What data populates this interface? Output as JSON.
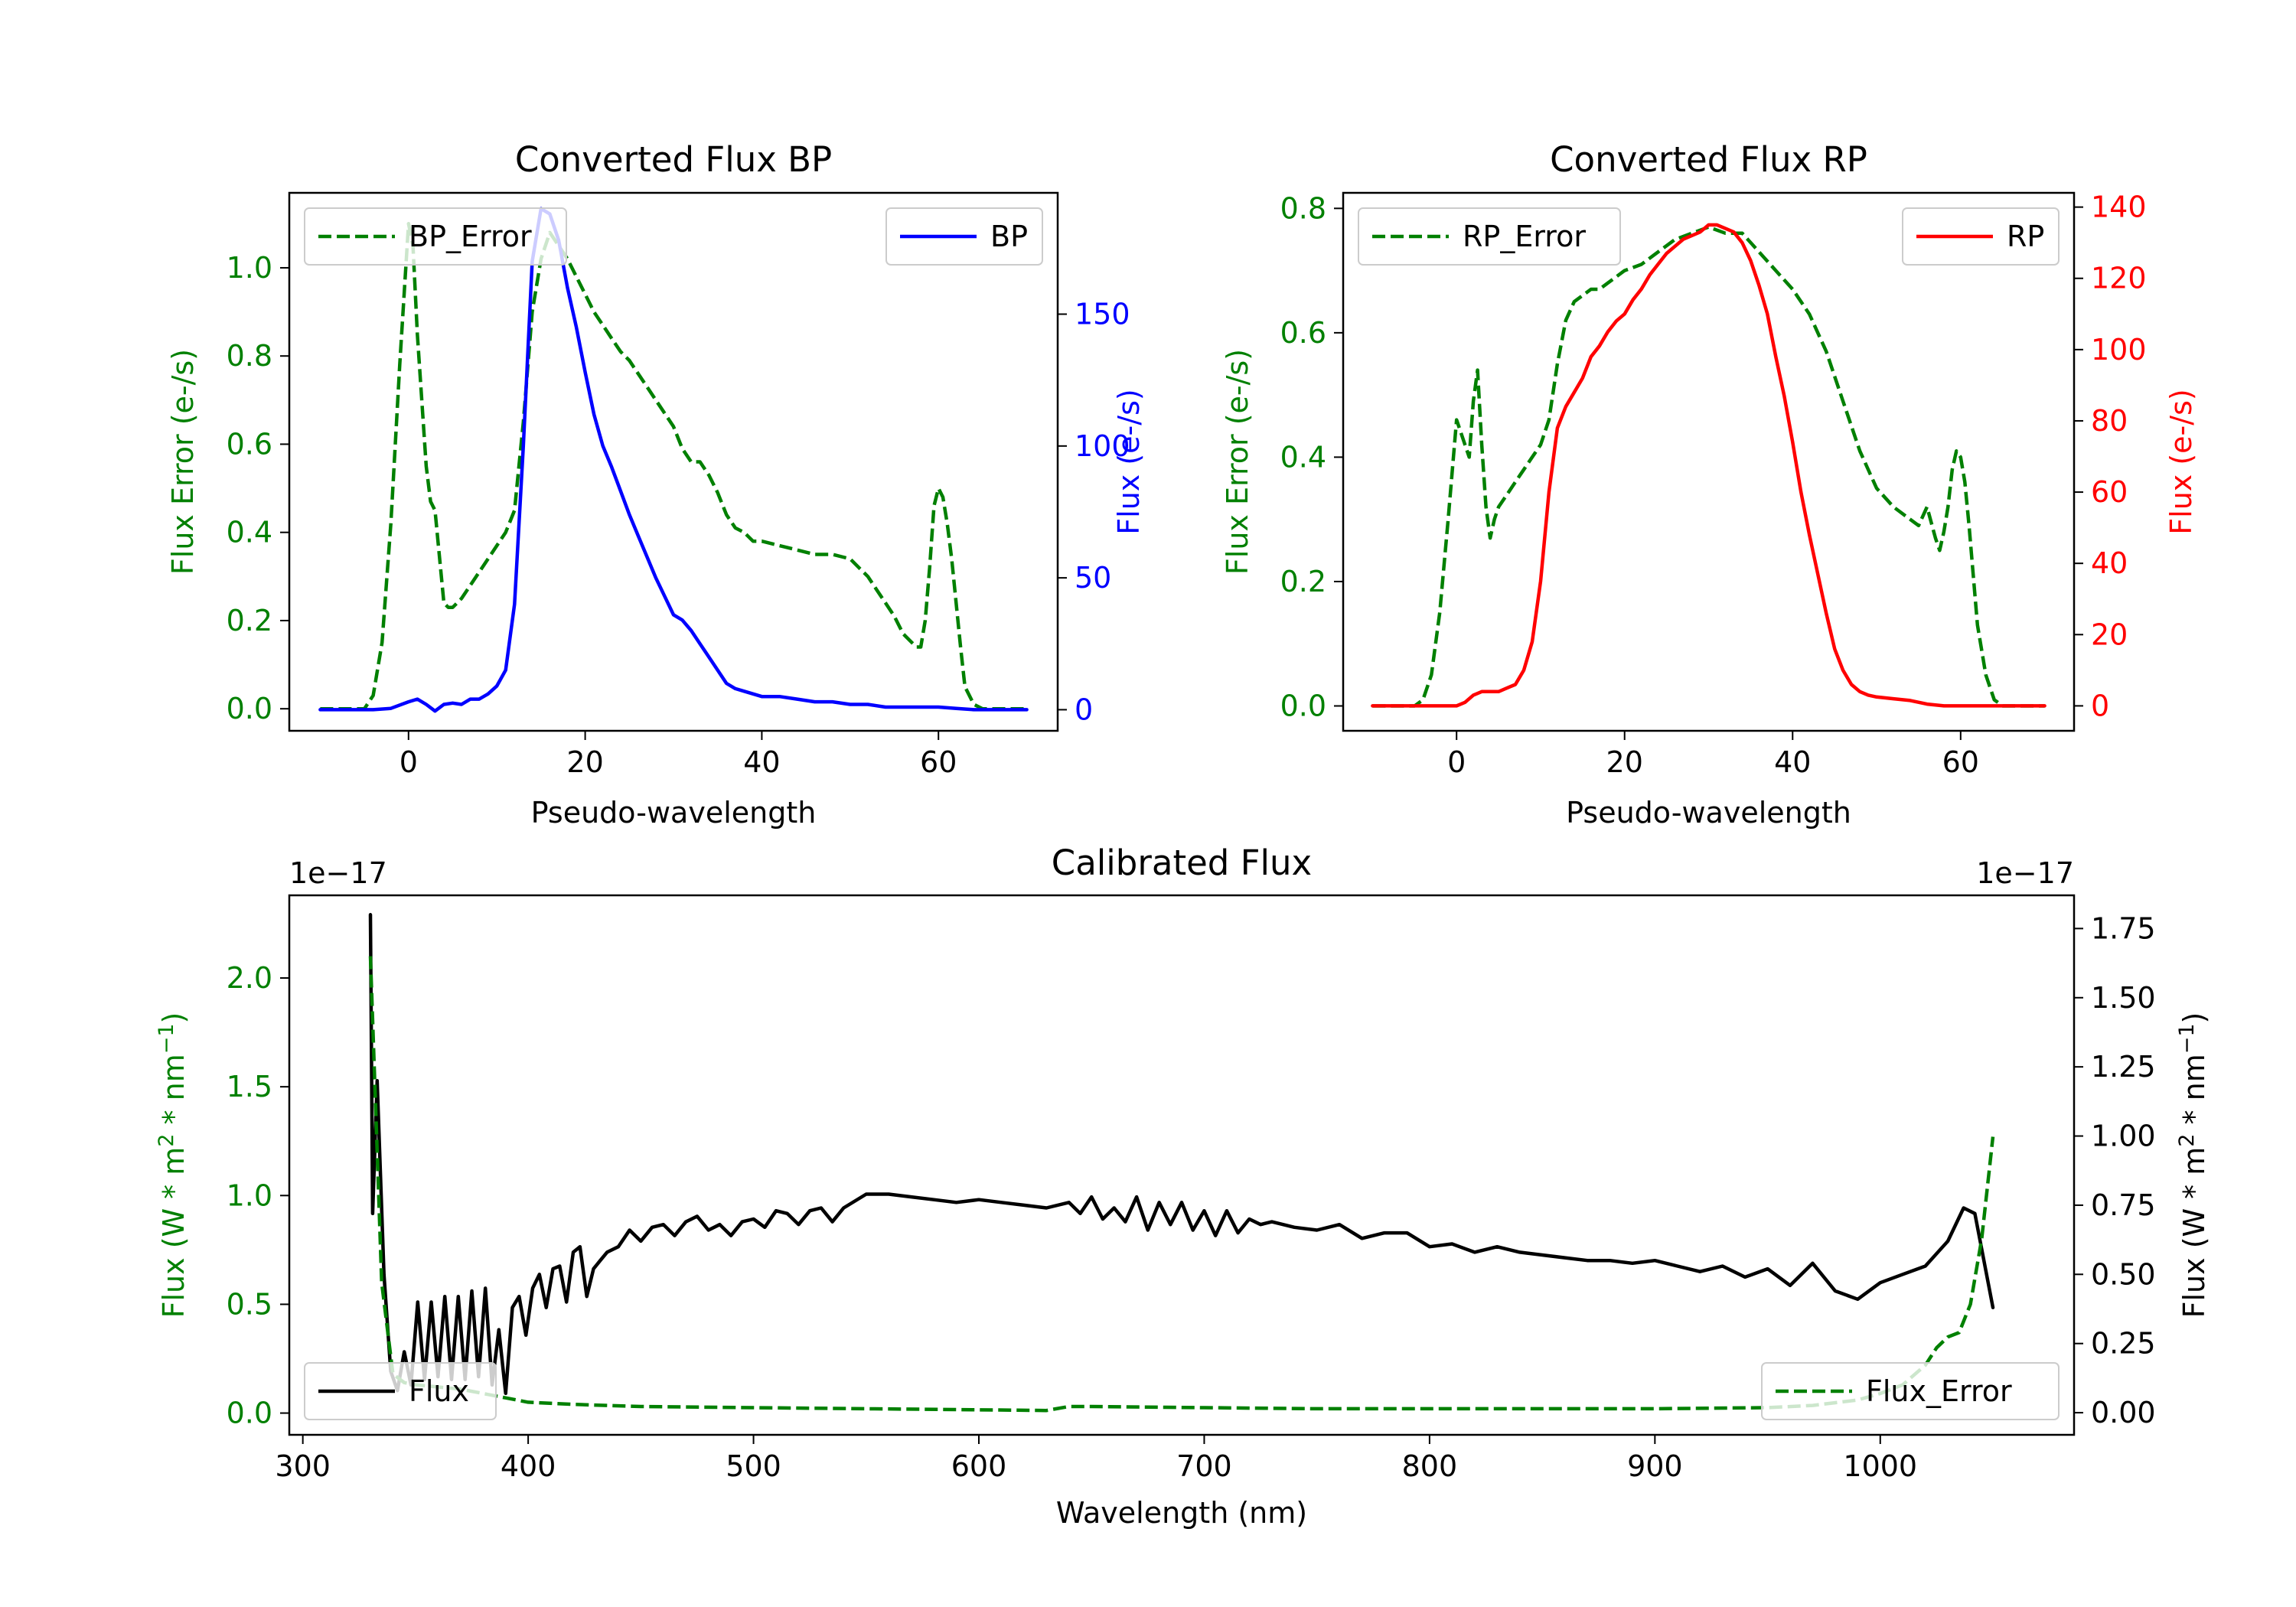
{
  "colors": {
    "green": "#008000",
    "blue": "#0000ff",
    "red": "#ff0000",
    "black": "#000000"
  },
  "chart_data": [
    {
      "type": "line",
      "title": "Converted Flux BP",
      "xlabel": "Pseudo-wavelength",
      "ylabel_left": "Flux Error (e-/s)",
      "ylabel_right": "Flux (e-/s)",
      "xlim": [
        -13.5,
        73.5
      ],
      "ylim_left": [
        -0.05,
        1.17
      ],
      "ylim_right": [
        -8,
        196
      ],
      "xticks": [
        0,
        20,
        40,
        60
      ],
      "yticks_left": [
        0.0,
        0.2,
        0.4,
        0.6,
        0.8,
        1.0
      ],
      "ytick_labels_left": [
        "0.0",
        "0.2",
        "0.4",
        "0.6",
        "0.8",
        "1.0"
      ],
      "yticks_right": [
        0,
        50,
        100,
        150
      ],
      "ytick_labels_right": [
        "0",
        "50",
        "100",
        "150"
      ],
      "legend_left": "top-left",
      "legend_right": "top-right",
      "series": [
        {
          "name": "BP_Error",
          "axis": "left",
          "style": "dashed",
          "color": "#008000",
          "x": [
            -10,
            -5,
            -4,
            -3,
            -2,
            -1,
            0,
            0.5,
            1,
            2,
            2.5,
            3,
            4,
            4.5,
            5,
            6,
            7,
            8,
            9,
            10,
            11,
            12,
            13,
            14,
            15,
            16,
            17,
            18,
            19,
            20,
            21,
            22,
            23,
            24,
            25,
            26,
            27,
            28,
            29,
            30,
            31,
            32,
            33,
            34,
            35,
            36,
            37,
            38,
            39,
            40,
            42,
            44,
            46,
            48,
            50,
            51,
            52,
            53,
            54,
            55,
            56,
            57,
            57.5,
            58,
            58.5,
            59,
            59.5,
            60,
            60.5,
            61,
            61.5,
            62,
            62.5,
            63,
            64,
            65,
            66,
            68,
            70
          ],
          "y": [
            0.0,
            0.0,
            0.03,
            0.15,
            0.42,
            0.78,
            1.1,
            1.05,
            0.85,
            0.55,
            0.47,
            0.45,
            0.24,
            0.23,
            0.23,
            0.25,
            0.28,
            0.31,
            0.34,
            0.37,
            0.4,
            0.45,
            0.65,
            0.9,
            1.02,
            1.08,
            1.05,
            1.02,
            0.98,
            0.94,
            0.9,
            0.87,
            0.84,
            0.81,
            0.79,
            0.76,
            0.73,
            0.7,
            0.67,
            0.64,
            0.59,
            0.56,
            0.56,
            0.53,
            0.49,
            0.44,
            0.41,
            0.4,
            0.38,
            0.38,
            0.37,
            0.36,
            0.35,
            0.35,
            0.34,
            0.32,
            0.3,
            0.27,
            0.24,
            0.21,
            0.17,
            0.15,
            0.14,
            0.14,
            0.2,
            0.32,
            0.46,
            0.5,
            0.48,
            0.42,
            0.34,
            0.24,
            0.14,
            0.05,
            0.01,
            0.0,
            0.0,
            0.0,
            0.0
          ]
        },
        {
          "name": "BP",
          "axis": "right",
          "style": "solid",
          "color": "#0000ff",
          "x": [
            -10,
            -6,
            -4,
            -2,
            0,
            1,
            2,
            3,
            4,
            5,
            6,
            7,
            8,
            9,
            10,
            11,
            12,
            13,
            14,
            15,
            16,
            17,
            18,
            19,
            20,
            21,
            22,
            23,
            24,
            25,
            26,
            27,
            28,
            29,
            30,
            31,
            32,
            33,
            34,
            35,
            36,
            37,
            38,
            40,
            42,
            44,
            46,
            48,
            50,
            52,
            54,
            56,
            58,
            60,
            62,
            64,
            66,
            68,
            70
          ],
          "y": [
            0,
            0,
            0,
            0.5,
            3,
            4,
            2,
            -0.5,
            2,
            2.5,
            2,
            4,
            4,
            6,
            9,
            15,
            40,
            100,
            170,
            190,
            188,
            178,
            160,
            145,
            128,
            112,
            100,
            92,
            83,
            74,
            66,
            58,
            50,
            43,
            36,
            34,
            30,
            25,
            20,
            15,
            10,
            8,
            7,
            5,
            5,
            4,
            3,
            3,
            2,
            2,
            1,
            1,
            1,
            1,
            0.5,
            0,
            0,
            0,
            0
          ]
        }
      ],
      "legend": [
        "BP_Error",
        "BP"
      ]
    },
    {
      "type": "line",
      "title": "Converted Flux RP",
      "xlabel": "Pseudo-wavelength",
      "ylabel_left": "Flux Error (e-/s)",
      "ylabel_right": "Flux (e-/s)",
      "xlim": [
        -13.5,
        73.5
      ],
      "ylim_left": [
        -0.04,
        0.825
      ],
      "ylim_right": [
        -7,
        144
      ],
      "xticks": [
        0,
        20,
        40,
        60
      ],
      "yticks_left": [
        0.0,
        0.2,
        0.4,
        0.6,
        0.8
      ],
      "ytick_labels_left": [
        "0.0",
        "0.2",
        "0.4",
        "0.6",
        "0.8"
      ],
      "yticks_right": [
        0,
        20,
        40,
        60,
        80,
        100,
        120,
        140
      ],
      "ytick_labels_right": [
        "0",
        "20",
        "40",
        "60",
        "80",
        "100",
        "120",
        "140"
      ],
      "legend_left": "top-left",
      "legend_right": "top-right",
      "series": [
        {
          "name": "RP_Error",
          "axis": "left",
          "style": "dashed",
          "color": "#008000",
          "x": [
            -10,
            -5,
            -4,
            -3,
            -2,
            -1,
            0,
            0.5,
            1,
            1.5,
            2,
            2.5,
            3,
            3.5,
            4,
            4.5,
            5,
            6,
            7,
            8,
            9,
            10,
            11,
            12,
            13,
            14,
            15,
            16,
            17,
            18,
            19,
            20,
            22,
            24,
            26,
            28,
            30,
            32,
            34,
            36,
            38,
            40,
            42,
            44,
            46,
            48,
            50,
            52,
            54,
            55,
            56,
            57,
            57.5,
            58,
            58.5,
            59,
            59.5,
            60,
            60.5,
            61,
            61.5,
            62,
            63,
            64,
            65,
            66,
            68,
            70
          ],
          "y": [
            0.0,
            0.0,
            0.01,
            0.05,
            0.15,
            0.3,
            0.46,
            0.44,
            0.42,
            0.4,
            0.49,
            0.54,
            0.42,
            0.32,
            0.27,
            0.3,
            0.32,
            0.34,
            0.36,
            0.38,
            0.4,
            0.42,
            0.46,
            0.55,
            0.62,
            0.65,
            0.66,
            0.67,
            0.67,
            0.68,
            0.69,
            0.7,
            0.71,
            0.73,
            0.75,
            0.76,
            0.77,
            0.76,
            0.76,
            0.73,
            0.7,
            0.67,
            0.63,
            0.57,
            0.49,
            0.41,
            0.35,
            0.32,
            0.3,
            0.29,
            0.32,
            0.27,
            0.25,
            0.28,
            0.32,
            0.38,
            0.41,
            0.4,
            0.36,
            0.29,
            0.21,
            0.13,
            0.05,
            0.01,
            0.0,
            0.0,
            0.0,
            0.0
          ]
        },
        {
          "name": "RP",
          "axis": "right",
          "style": "solid",
          "color": "#ff0000",
          "x": [
            -10,
            -4,
            0,
            1,
            2,
            3,
            4,
            5,
            6,
            7,
            8,
            9,
            10,
            11,
            12,
            13,
            14,
            15,
            16,
            17,
            18,
            19,
            20,
            21,
            22,
            23,
            24,
            25,
            26,
            27,
            28,
            29,
            30,
            31,
            32,
            33,
            34,
            35,
            36,
            37,
            38,
            39,
            40,
            41,
            42,
            43,
            44,
            45,
            46,
            47,
            48,
            49,
            50,
            52,
            54,
            56,
            58,
            60,
            62,
            64,
            66,
            68,
            70
          ],
          "y": [
            0,
            0,
            0,
            1,
            3,
            4,
            4,
            4,
            5,
            6,
            10,
            18,
            35,
            60,
            78,
            84,
            88,
            92,
            98,
            101,
            105,
            108,
            110,
            114,
            117,
            121,
            124,
            127,
            129,
            131,
            132,
            133,
            135,
            135,
            134,
            133,
            130,
            125,
            118,
            110,
            98,
            87,
            74,
            60,
            48,
            37,
            26,
            16,
            10,
            6,
            4,
            3,
            2.5,
            2,
            1.5,
            0.5,
            0,
            0,
            0,
            0,
            0,
            0,
            0
          ]
        }
      ],
      "legend": [
        "RP_Error",
        "RP"
      ]
    },
    {
      "type": "line",
      "title": "Calibrated Flux",
      "xlabel": "Wavelength (nm)",
      "ylabel_left": "Flux (W * m2 * nm−1)",
      "ylabel_right": "Flux (W * m2 * nm−1)",
      "offset_text_left": "1e−17",
      "offset_text_right": "1e−17",
      "xlim": [
        294,
        1086
      ],
      "ylim_left": [
        -0.1,
        2.38
      ],
      "ylim_right": [
        -0.08,
        1.87
      ],
      "xticks": [
        300,
        400,
        500,
        600,
        700,
        800,
        900,
        1000
      ],
      "yticks_left": [
        0.0,
        0.5,
        1.0,
        1.5,
        2.0
      ],
      "ytick_labels_left": [
        "0.0",
        "0.5",
        "1.0",
        "1.5",
        "2.0"
      ],
      "yticks_right": [
        0.0,
        0.25,
        0.5,
        0.75,
        1.0,
        1.25,
        1.5,
        1.75
      ],
      "ytick_labels_right": [
        "0.00",
        "0.25",
        "0.50",
        "0.75",
        "1.00",
        "1.25",
        "1.50",
        "1.75"
      ],
      "legend_left": "bottom-left",
      "legend_right": "bottom-right",
      "series": [
        {
          "name": "Flux",
          "axis": "right",
          "style": "solid",
          "color": "#000000",
          "x": [
            330,
            331,
            333,
            336,
            339,
            342,
            345,
            348,
            351,
            354,
            357,
            360,
            363,
            366,
            369,
            372,
            375,
            378,
            381,
            384,
            387,
            390,
            393,
            396,
            399,
            402,
            405,
            408,
            411,
            414,
            417,
            420,
            423,
            426,
            429,
            432,
            435,
            440,
            445,
            450,
            455,
            460,
            465,
            470,
            475,
            480,
            485,
            490,
            495,
            500,
            505,
            510,
            515,
            520,
            525,
            530,
            535,
            540,
            550,
            560,
            570,
            580,
            590,
            600,
            610,
            620,
            630,
            640,
            645,
            650,
            655,
            660,
            665,
            670,
            675,
            680,
            685,
            690,
            695,
            700,
            705,
            710,
            715,
            720,
            725,
            730,
            740,
            750,
            760,
            770,
            780,
            790,
            800,
            810,
            820,
            830,
            840,
            850,
            860,
            870,
            880,
            890,
            900,
            910,
            920,
            930,
            940,
            950,
            960,
            970,
            980,
            990,
            1000,
            1010,
            1020,
            1030,
            1037,
            1042,
            1046,
            1050
          ],
          "y": [
            1.8,
            0.72,
            1.2,
            0.5,
            0.15,
            0.08,
            0.22,
            0.1,
            0.4,
            0.12,
            0.4,
            0.13,
            0.42,
            0.12,
            0.42,
            0.12,
            0.44,
            0.13,
            0.45,
            0.1,
            0.3,
            0.07,
            0.38,
            0.42,
            0.28,
            0.45,
            0.5,
            0.38,
            0.52,
            0.53,
            0.4,
            0.58,
            0.6,
            0.42,
            0.52,
            0.55,
            0.58,
            0.6,
            0.66,
            0.62,
            0.67,
            0.68,
            0.64,
            0.69,
            0.71,
            0.66,
            0.68,
            0.64,
            0.69,
            0.7,
            0.67,
            0.73,
            0.72,
            0.68,
            0.73,
            0.74,
            0.69,
            0.74,
            0.79,
            0.79,
            0.78,
            0.77,
            0.76,
            0.77,
            0.76,
            0.75,
            0.74,
            0.76,
            0.72,
            0.78,
            0.7,
            0.74,
            0.69,
            0.78,
            0.66,
            0.76,
            0.68,
            0.76,
            0.66,
            0.73,
            0.64,
            0.73,
            0.65,
            0.7,
            0.68,
            0.69,
            0.67,
            0.66,
            0.68,
            0.63,
            0.65,
            0.65,
            0.6,
            0.61,
            0.58,
            0.6,
            0.58,
            0.57,
            0.56,
            0.55,
            0.55,
            0.54,
            0.55,
            0.53,
            0.51,
            0.53,
            0.49,
            0.52,
            0.46,
            0.54,
            0.44,
            0.41,
            0.47,
            0.5,
            0.53,
            0.62,
            0.74,
            0.72,
            0.55,
            0.38
          ]
        },
        {
          "name": "Flux_Error",
          "axis": "left",
          "style": "dashed",
          "color": "#008000",
          "x": [
            330,
            332,
            335,
            340,
            345,
            350,
            360,
            370,
            380,
            390,
            400,
            420,
            450,
            500,
            550,
            600,
            630,
            640,
            650,
            700,
            750,
            800,
            850,
            900,
            950,
            970,
            990,
            1000,
            1010,
            1020,
            1025,
            1030,
            1035,
            1040,
            1045,
            1050
          ],
          "y": [
            2.1,
            1.5,
            0.6,
            0.18,
            0.14,
            0.13,
            0.12,
            0.11,
            0.09,
            0.07,
            0.05,
            0.04,
            0.03,
            0.025,
            0.02,
            0.015,
            0.012,
            0.03,
            0.03,
            0.025,
            0.02,
            0.02,
            0.02,
            0.02,
            0.025,
            0.035,
            0.06,
            0.09,
            0.13,
            0.22,
            0.3,
            0.35,
            0.37,
            0.5,
            0.8,
            1.27
          ]
        }
      ],
      "legend": [
        "Flux",
        "Flux_Error"
      ]
    }
  ]
}
